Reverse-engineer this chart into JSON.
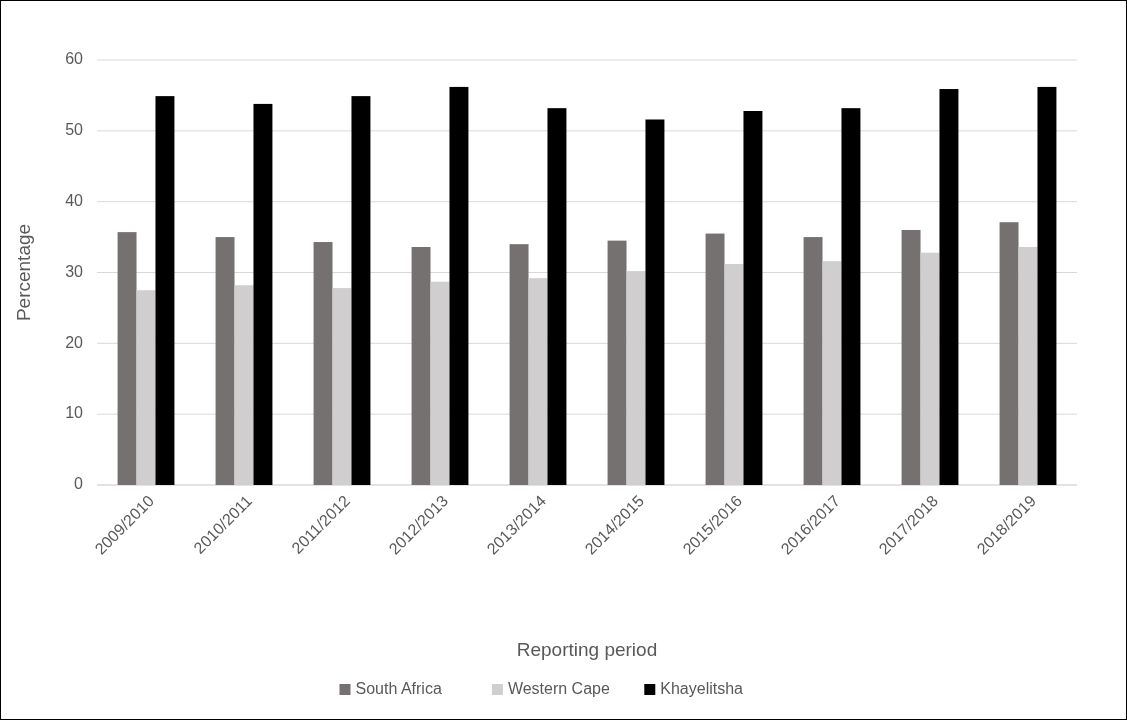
{
  "chart_data": {
    "type": "bar",
    "xlabel": "Reporting period",
    "ylabel": "Percentage",
    "categories": [
      "2009/2010",
      "2010/2011",
      "2011/2012",
      "2012/2013",
      "2013/2014",
      "2014/2015",
      "2015/2016",
      "2016/2017",
      "2017/2018",
      "2018/2019"
    ],
    "series": [
      {
        "name": "South Africa",
        "color": "#767171",
        "values": [
          35.7,
          35.0,
          34.3,
          33.6,
          34.0,
          34.5,
          35.5,
          35.0,
          36.0,
          37.1
        ]
      },
      {
        "name": "Western Cape",
        "color": "#d0cece",
        "values": [
          27.5,
          28.2,
          27.8,
          28.7,
          29.2,
          30.2,
          31.2,
          31.6,
          32.8,
          33.6
        ]
      },
      {
        "name": "Khayelitsha",
        "color": "#000000",
        "values": [
          54.9,
          53.8,
          54.9,
          56.2,
          53.2,
          51.6,
          52.8,
          53.2,
          55.9,
          56.2
        ]
      }
    ],
    "ylim": [
      0,
      60
    ],
    "yticks": [
      0,
      10,
      20,
      30,
      40,
      50,
      60
    ],
    "grid": "y",
    "legend": "bottom"
  }
}
